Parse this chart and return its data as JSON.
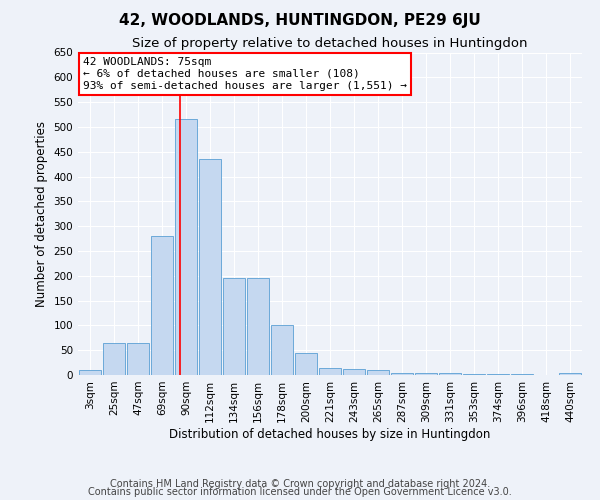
{
  "title": "42, WOODLANDS, HUNTINGDON, PE29 6JU",
  "subtitle": "Size of property relative to detached houses in Huntingdon",
  "xlabel": "Distribution of detached houses by size in Huntingdon",
  "ylabel": "Number of detached properties",
  "footer_line1": "Contains HM Land Registry data © Crown copyright and database right 2024.",
  "footer_line2": "Contains public sector information licensed under the Open Government Licence v3.0.",
  "categories": [
    "3sqm",
    "25sqm",
    "47sqm",
    "69sqm",
    "90sqm",
    "112sqm",
    "134sqm",
    "156sqm",
    "178sqm",
    "200sqm",
    "221sqm",
    "243sqm",
    "265sqm",
    "287sqm",
    "309sqm",
    "331sqm",
    "353sqm",
    "374sqm",
    "396sqm",
    "418sqm",
    "440sqm"
  ],
  "values": [
    10,
    65,
    65,
    280,
    515,
    435,
    195,
    195,
    100,
    45,
    15,
    12,
    10,
    5,
    5,
    5,
    3,
    3,
    3,
    0,
    5
  ],
  "bar_color": "#c5d8f0",
  "bar_edge_color": "#5a9fd4",
  "red_line_x": 3.75,
  "annotation_line1": "42 WOODLANDS: 75sqm",
  "annotation_line2": "← 6% of detached houses are smaller (108)",
  "annotation_line3": "93% of semi-detached houses are larger (1,551) →",
  "annotation_box_color": "white",
  "annotation_box_edge": "red",
  "ylim": [
    0,
    650
  ],
  "yticks": [
    0,
    50,
    100,
    150,
    200,
    250,
    300,
    350,
    400,
    450,
    500,
    550,
    600,
    650
  ],
  "bg_color": "#eef2f9",
  "grid_color": "white",
  "title_fontsize": 11,
  "subtitle_fontsize": 9.5,
  "axis_label_fontsize": 8.5,
  "tick_fontsize": 7.5,
  "annotation_fontsize": 8,
  "footer_fontsize": 7
}
